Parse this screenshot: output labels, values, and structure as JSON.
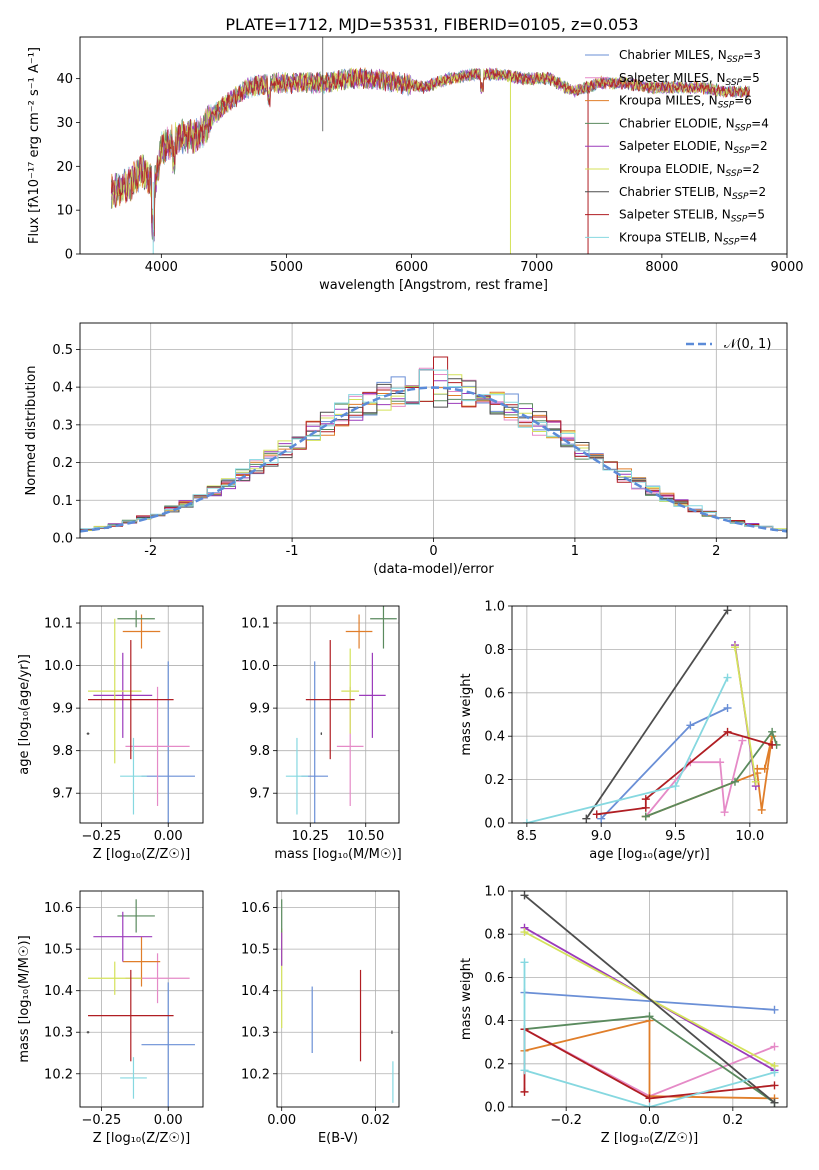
{
  "title": "PLATE=1712, MJD=53531, FIBERID=0105, z=0.053",
  "colors": {
    "Chabrier MILES": "#6a8fd6",
    "Salpeter MILES": "#e58ac7",
    "Kroupa MILES": "#e07e2a",
    "Chabrier ELODIE": "#5a8a5e",
    "Salpeter ELODIE": "#9b3bbb",
    "Kroupa ELODIE": "#d4e25a",
    "Chabrier STELIB": "#4d4d4d",
    "Salpeter STELIB": "#b01e23",
    "Kroupa STELIB": "#86d8e0",
    "normal": "#5b8bd8",
    "grid": "#b0b0b0"
  },
  "legend_spectrum": [
    {
      "pre": "Chabrier MILES, N",
      "sub": "SSP",
      "post": "=3",
      "key": "Chabrier MILES"
    },
    {
      "pre": "Salpeter MILES, N",
      "sub": "SSP",
      "post": "=5",
      "key": "Salpeter MILES"
    },
    {
      "pre": "Kroupa MILES, N",
      "sub": "SSP",
      "post": "=6",
      "key": "Kroupa MILES"
    },
    {
      "pre": "Chabrier ELODIE, N",
      "sub": "SSP",
      "post": "=4",
      "key": "Chabrier ELODIE"
    },
    {
      "pre": "Salpeter ELODIE, N",
      "sub": "SSP",
      "post": "=2",
      "key": "Salpeter ELODIE"
    },
    {
      "pre": "Kroupa ELODIE, N",
      "sub": "SSP",
      "post": "=2",
      "key": "Kroupa ELODIE"
    },
    {
      "pre": "Chabrier STELIB, N",
      "sub": "SSP",
      "post": "=2",
      "key": "Chabrier STELIB"
    },
    {
      "pre": "Salpeter STELIB, N",
      "sub": "SSP",
      "post": "=5",
      "key": "Salpeter STELIB"
    },
    {
      "pre": "Kroupa STELIB, N",
      "sub": "SSP",
      "post": "=4",
      "key": "Kroupa STELIB"
    }
  ],
  "chart_data": [
    {
      "id": "spectrum",
      "type": "line",
      "xlabel": "wavelength [Angstrom, rest frame]",
      "ylabel": "Flux [fλ10⁻¹⁷ erg cm⁻² s⁻¹ A⁻¹]",
      "xlim": [
        3350,
        9000
      ],
      "ylim": [
        0,
        49.5
      ],
      "xticks": [
        4000,
        5000,
        6000,
        7000,
        8000,
        9000
      ],
      "yticks": [
        0,
        10,
        20,
        30,
        40
      ],
      "wavelength": [
        3600,
        3750,
        3850,
        3950,
        4000,
        4100,
        4200,
        4300,
        4400,
        4500,
        4700,
        4900,
        5100,
        5300,
        5500,
        5700,
        5900,
        6100,
        6300,
        6500,
        6700,
        6900,
        7100,
        7300,
        7500,
        7700,
        7900,
        8100,
        8300,
        8500,
        8700
      ],
      "flux": [
        14,
        16,
        19,
        16,
        24,
        26,
        27,
        27,
        31,
        34,
        38,
        39,
        39,
        39,
        40,
        40,
        39,
        38,
        40,
        41,
        41,
        40,
        40,
        37,
        39,
        39,
        38,
        38,
        38,
        37,
        37
      ],
      "dips": [
        {
          "x": 3935,
          "y": 0
        },
        {
          "x": 6790,
          "y": 0
        },
        {
          "x": 7410,
          "y": 0
        },
        {
          "x": 5300,
          "y": 28
        }
      ],
      "spikes": [
        {
          "x": 5290,
          "y": 49.5
        }
      ]
    },
    {
      "id": "residuals",
      "type": "step-histogram",
      "xlabel": "(data-model)/error",
      "ylabel": "Normed distribution",
      "xlim": [
        -2.5,
        2.5
      ],
      "ylim": [
        0,
        0.57
      ],
      "xticks": [
        -2,
        -1,
        0,
        1,
        2
      ],
      "yticks": [
        0.0,
        0.1,
        0.2,
        0.3,
        0.4,
        0.5
      ],
      "bin_width": 0.1,
      "normal_label": "𝒩(0, 1)",
      "normal_mean": 0,
      "normal_sigma": 1
    },
    {
      "id": "Z-age",
      "type": "errorbar",
      "xlabel": "Z [log₁₀(Z/Z☉)]",
      "ylabel": "age  [log₁₀(age/yr)]",
      "xlim": [
        -0.33,
        0.13
      ],
      "ylim": [
        9.63,
        10.14
      ],
      "xticks": [
        -0.25,
        0.0
      ],
      "xticklabels": [
        "−0.25",
        "0.00"
      ],
      "yticks": [
        9.7,
        9.8,
        9.9,
        10.0,
        10.1
      ],
      "points": [
        {
          "key": "Chabrier MILES",
          "x": 0.0,
          "xerr": 0.1,
          "y": 9.74,
          "yerr": 0.27
        },
        {
          "key": "Salpeter MILES",
          "x": -0.04,
          "xerr": 0.12,
          "y": 9.81,
          "yerr": 0.14
        },
        {
          "key": "Kroupa MILES",
          "x": -0.1,
          "xerr": 0.07,
          "y": 10.08,
          "yerr": 0.04
        },
        {
          "key": "Chabrier ELODIE",
          "x": -0.12,
          "xerr": 0.07,
          "y": 10.11,
          "yerr": 0.02
        },
        {
          "key": "Salpeter ELODIE",
          "x": -0.17,
          "xerr": 0.11,
          "y": 9.93,
          "yerr": 0.1
        },
        {
          "key": "Kroupa ELODIE",
          "x": -0.2,
          "xerr": 0.1,
          "y": 9.94,
          "yerr": 0.17
        },
        {
          "key": "Chabrier STELIB",
          "x": -0.3,
          "xerr": 0.005,
          "y": 9.84,
          "yerr": 0.003
        },
        {
          "key": "Salpeter STELIB",
          "x": -0.14,
          "xerr": 0.16,
          "y": 9.92,
          "yerr": 0.14
        },
        {
          "key": "Kroupa STELIB",
          "x": -0.13,
          "xerr": 0.05,
          "y": 9.74,
          "yerr": 0.09
        }
      ]
    },
    {
      "id": "mass-age",
      "type": "errorbar",
      "xlabel": "mass [log₁₀(M/M☉)]",
      "ylabel": "",
      "xlim": [
        10.1,
        10.65
      ],
      "ylim": [
        9.63,
        10.14
      ],
      "xticks": [
        10.25,
        10.5
      ],
      "xticklabels": [
        "10.25",
        "10.50"
      ],
      "yticks": [
        9.7,
        9.8,
        9.9,
        10.0,
        10.1
      ],
      "points": [
        {
          "key": "Chabrier MILES",
          "x": 10.27,
          "xerr": 0.06,
          "y": 9.74,
          "yerr": 0.27
        },
        {
          "key": "Salpeter MILES",
          "x": 10.43,
          "xerr": 0.06,
          "y": 9.81,
          "yerr": 0.14
        },
        {
          "key": "Kroupa MILES",
          "x": 10.47,
          "xerr": 0.06,
          "y": 10.08,
          "yerr": 0.04
        },
        {
          "key": "Chabrier ELODIE",
          "x": 10.58,
          "xerr": 0.06,
          "y": 10.11,
          "yerr": 0.07
        },
        {
          "key": "Salpeter ELODIE",
          "x": 10.53,
          "xerr": 0.06,
          "y": 9.93,
          "yerr": 0.1
        },
        {
          "key": "Kroupa ELODIE",
          "x": 10.43,
          "xerr": 0.04,
          "y": 9.94,
          "yerr": 0.1
        },
        {
          "key": "Chabrier STELIB",
          "x": 10.3,
          "xerr": 0.003,
          "y": 9.84,
          "yerr": 0.003
        },
        {
          "key": "Salpeter STELIB",
          "x": 10.34,
          "xerr": 0.11,
          "y": 9.92,
          "yerr": 0.14
        },
        {
          "key": "Kroupa STELIB",
          "x": 10.19,
          "xerr": 0.05,
          "y": 9.74,
          "yerr": 0.09
        }
      ]
    },
    {
      "id": "weights-age",
      "type": "line",
      "xlabel": "age  [log₁₀(age/yr)]",
      "ylabel": "mass weight",
      "xlim": [
        8.4,
        10.25
      ],
      "ylim": [
        0,
        1.0
      ],
      "xticks": [
        8.5,
        9.0,
        9.5,
        10.0
      ],
      "xticklabels": [
        "8.5",
        "9.0",
        "9.5",
        "10.0"
      ],
      "yticks": [
        0.0,
        0.2,
        0.4,
        0.6,
        0.8,
        1.0
      ],
      "series": [
        {
          "key": "Chabrier MILES",
          "x": [
            9.0,
            9.6,
            9.85
          ],
          "y": [
            0.02,
            0.45,
            0.53
          ]
        },
        {
          "key": "Salpeter MILES",
          "x": [
            9.3,
            9.6,
            9.8,
            9.83,
            9.95
          ],
          "y": [
            0.03,
            0.28,
            0.28,
            0.05,
            0.38
          ]
        },
        {
          "key": "Kroupa MILES",
          "x": [
            9.3,
            10.05,
            10.08,
            10.15,
            10.1,
            10.05
          ],
          "y": [
            0.03,
            0.23,
            0.06,
            0.4,
            0.25,
            0.25
          ]
        },
        {
          "key": "Chabrier ELODIE",
          "x": [
            9.3,
            9.9,
            10.15,
            10.18
          ],
          "y": [
            0.03,
            0.19,
            0.42,
            0.36
          ]
        },
        {
          "key": "Salpeter ELODIE",
          "x": [
            10.04,
            9.9
          ],
          "y": [
            0.17,
            0.82
          ]
        },
        {
          "key": "Kroupa ELODIE",
          "x": [
            9.9,
            10.04
          ],
          "y": [
            0.81,
            0.19
          ]
        },
        {
          "key": "Chabrier STELIB",
          "x": [
            8.9,
            9.85
          ],
          "y": [
            0.02,
            0.98
          ]
        },
        {
          "key": "Salpeter STELIB",
          "x": [
            8.97,
            9.3,
            9.3,
            9.85,
            10.15
          ],
          "y": [
            0.04,
            0.07,
            0.11,
            0.42,
            0.36
          ]
        },
        {
          "key": "Kroupa STELIB",
          "x": [
            8.5,
            9.5,
            9.85
          ],
          "y": [
            0.0,
            0.17,
            0.67
          ]
        }
      ]
    },
    {
      "id": "Z-mass",
      "type": "errorbar",
      "xlabel": "Z [log₁₀(Z/Z☉)]",
      "ylabel": "mass [log₁₀(M/M☉)]",
      "xlim": [
        -0.33,
        0.13
      ],
      "ylim": [
        10.12,
        10.64
      ],
      "xticks": [
        -0.25,
        0.0
      ],
      "xticklabels": [
        "−0.25",
        "0.00"
      ],
      "yticks": [
        10.2,
        10.3,
        10.4,
        10.5,
        10.6
      ],
      "points": [
        {
          "key": "Chabrier MILES",
          "x": 0.0,
          "xerr": 0.1,
          "y": 10.27,
          "yerr": 0.15
        },
        {
          "key": "Salpeter MILES",
          "x": -0.04,
          "xerr": 0.12,
          "y": 10.43,
          "yerr": 0.06
        },
        {
          "key": "Kroupa MILES",
          "x": -0.1,
          "xerr": 0.07,
          "y": 10.47,
          "yerr": 0.06
        },
        {
          "key": "Chabrier ELODIE",
          "x": -0.12,
          "xerr": 0.07,
          "y": 10.58,
          "yerr": 0.04
        },
        {
          "key": "Salpeter ELODIE",
          "x": -0.17,
          "xerr": 0.11,
          "y": 10.53,
          "yerr": 0.06
        },
        {
          "key": "Kroupa ELODIE",
          "x": -0.2,
          "xerr": 0.1,
          "y": 10.43,
          "yerr": 0.04
        },
        {
          "key": "Chabrier STELIB",
          "x": -0.3,
          "xerr": 0.005,
          "y": 10.3,
          "yerr": 0.003
        },
        {
          "key": "Salpeter STELIB",
          "x": -0.14,
          "xerr": 0.16,
          "y": 10.34,
          "yerr": 0.11
        },
        {
          "key": "Kroupa STELIB",
          "x": -0.13,
          "xerr": 0.05,
          "y": 10.19,
          "yerr": 0.05
        }
      ]
    },
    {
      "id": "EBV-mass",
      "type": "errorbar",
      "xlabel": "E(B-V)",
      "ylabel": "",
      "xlim": [
        -0.001,
        0.025
      ],
      "ylim": [
        10.12,
        10.64
      ],
      "xticks": [
        0.0,
        0.02
      ],
      "xticklabels": [
        "0.00",
        "0.02"
      ],
      "yticks": [
        10.2,
        10.3,
        10.4,
        10.5,
        10.6
      ],
      "points": [
        {
          "key": "Chabrier MILES",
          "x": 0.0065,
          "xerr": 0.0,
          "y": 10.33,
          "yerr": 0.08
        },
        {
          "key": "Kroupa ELODIE",
          "x": 0.0,
          "xerr": 0.0,
          "y": 10.43,
          "yerr": 0.12
        },
        {
          "key": "Salpeter ELODIE",
          "x": 0.0,
          "xerr": 0.0,
          "y": 10.5,
          "yerr": 0.04
        },
        {
          "key": "Chabrier ELODIE",
          "x": 0.0,
          "xerr": 0.0,
          "y": 10.58,
          "yerr": 0.04
        },
        {
          "key": "Salpeter STELIB",
          "x": 0.0168,
          "xerr": 0.0,
          "y": 10.34,
          "yerr": 0.11
        },
        {
          "key": "Chabrier STELIB",
          "x": 0.0235,
          "xerr": 0.0,
          "y": 10.3,
          "yerr": 0.004
        },
        {
          "key": "Kroupa STELIB",
          "x": 0.0237,
          "xerr": 0.0,
          "y": 10.18,
          "yerr": 0.05
        }
      ]
    },
    {
      "id": "weights-Z",
      "type": "line",
      "xlabel": "Z [log₁₀(Z/Z☉)]",
      "ylabel": "mass weight",
      "xlim": [
        -0.33,
        0.33
      ],
      "ylim": [
        0,
        1.0
      ],
      "xticks": [
        -0.2,
        0.0,
        0.2
      ],
      "xticklabels": [
        "−0.2",
        "0.0",
        "0.2"
      ],
      "yticks": [
        0.0,
        0.2,
        0.4,
        0.6,
        0.8,
        1.0
      ],
      "series": [
        {
          "key": "Chabrier MILES",
          "x": [
            -0.3,
            0.3
          ],
          "y": [
            0.53,
            0.45
          ]
        },
        {
          "key": "Salpeter MILES",
          "x": [
            -0.3,
            0.0,
            0.3
          ],
          "y": [
            0.36,
            0.05,
            0.28
          ]
        },
        {
          "key": "Kroupa MILES",
          "x": [
            -0.3,
            0.0,
            0.0,
            0.3
          ],
          "y": [
            0.26,
            0.4,
            0.05,
            0.04
          ]
        },
        {
          "key": "Chabrier ELODIE",
          "x": [
            -0.3,
            0.0,
            0.3
          ],
          "y": [
            0.36,
            0.42,
            0.02
          ]
        },
        {
          "key": "Salpeter ELODIE",
          "x": [
            -0.3,
            0.3
          ],
          "y": [
            0.83,
            0.17
          ]
        },
        {
          "key": "Kroupa ELODIE",
          "x": [
            -0.3,
            0.3
          ],
          "y": [
            0.81,
            0.19
          ]
        },
        {
          "key": "Chabrier STELIB",
          "x": [
            -0.3,
            0.3
          ],
          "y": [
            0.98,
            0.02
          ]
        },
        {
          "key": "Salpeter STELIB",
          "x": [
            -0.3,
            -0.3,
            0.0,
            0.3
          ],
          "y": [
            0.07,
            0.36,
            0.04,
            0.1
          ]
        },
        {
          "key": "Kroupa STELIB",
          "x": [
            -0.3,
            -0.3,
            0.0,
            0.3
          ],
          "y": [
            0.67,
            0.17,
            0.0,
            0.16
          ]
        }
      ]
    }
  ]
}
